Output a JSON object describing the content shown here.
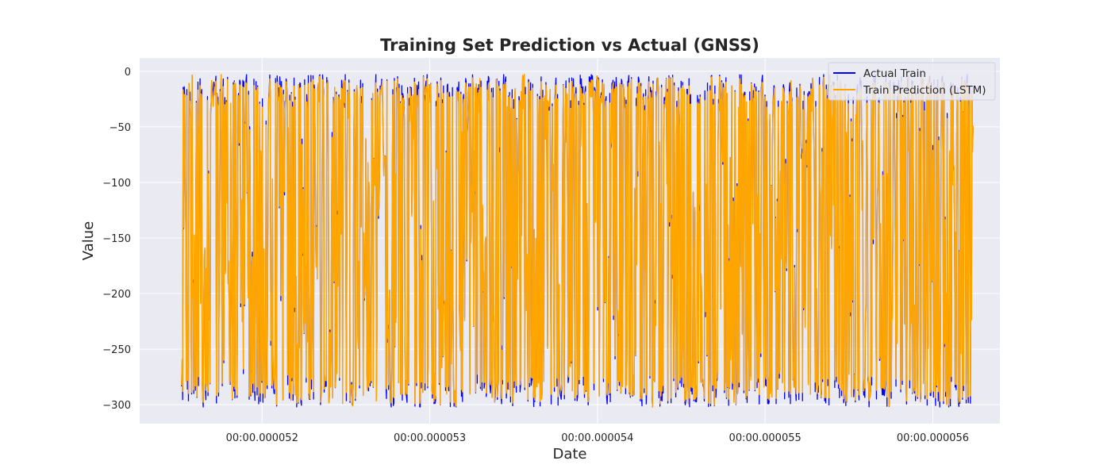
{
  "chart_data": {
    "type": "line",
    "title": "Training Set Prediction vs Actual (GNSS)",
    "xlabel": "Date",
    "ylabel": "Value",
    "x_ticks": [
      "00:00.000052",
      "00:00.000053",
      "00:00.000054",
      "00:00.000055",
      "00:00.000056"
    ],
    "x_tick_values": [
      52,
      53,
      54,
      55,
      56
    ],
    "x_unit": "microseconds",
    "xlim": [
      51.27,
      56.4
    ],
    "x_data_range": [
      51.52,
      56.24
    ],
    "ylim": [
      -317,
      12
    ],
    "y_ticks": [
      0,
      -50,
      -100,
      -150,
      -200,
      -250,
      -300
    ],
    "y_tick_labels": [
      "0",
      "−50",
      "−100",
      "−150",
      "−200",
      "−250",
      "−300"
    ],
    "value_range": [
      -302,
      -3
    ],
    "sample_count": 1500,
    "grid": true,
    "legend_position": "top-right",
    "style": {
      "plot_background": "#eaeaf2",
      "grid_color": "#ffffff"
    },
    "series": [
      {
        "name": "Actual Train",
        "color": "#0000ff"
      },
      {
        "name": "Train Prediction (LSTM)",
        "color": "#ffa500"
      }
    ]
  }
}
